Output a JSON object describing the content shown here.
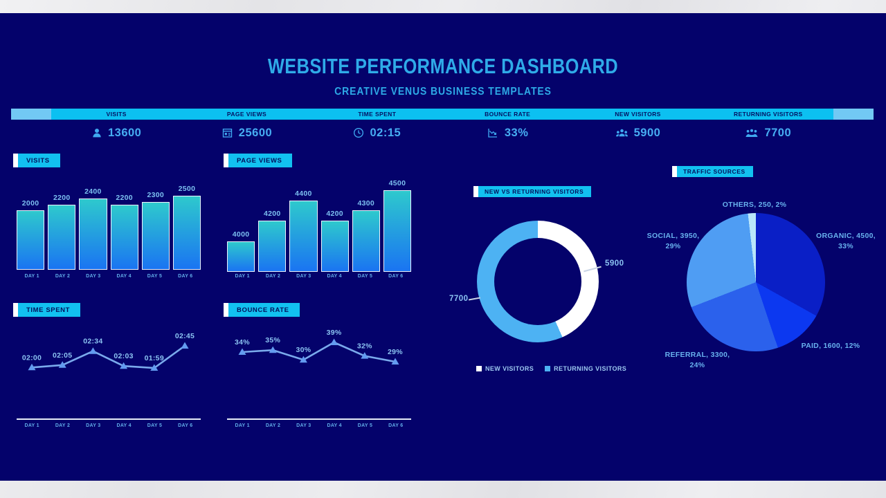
{
  "title": "WEBSITE PERFORMANCE DASHBOARD",
  "subtitle": "CREATIVE VENUS BUSINESS TEMPLATES",
  "kpis": [
    {
      "label": "VISITS",
      "value": "13600",
      "icon": "person-icon"
    },
    {
      "label": "PAGE VIEWS",
      "value": "25600",
      "icon": "page-icon"
    },
    {
      "label": "TIME SPENT",
      "value": "02:15",
      "icon": "clock-icon"
    },
    {
      "label": "BOUNCE RATE",
      "value": "33%",
      "icon": "trend-down-icon"
    },
    {
      "label": "NEW VISITORS",
      "value": "5900",
      "icon": "group-icon"
    },
    {
      "label": "RETURNING VISITORS",
      "value": "7700",
      "icon": "crowd-icon"
    }
  ],
  "colors": {
    "dashboard_bg": "#04026b",
    "accent_cyan": "#12c1f0",
    "strip_square": "#72c9f4",
    "title_cyan": "#2fabe8",
    "kpi_value_blue": "#46adf2",
    "bar_gradient_top": "#2ec9cd",
    "bar_gradient_bottom": "#1a74f2",
    "line_blue": "#7aaaec",
    "marker_blue": "#639bf0"
  },
  "chart_data": [
    {
      "type": "bar",
      "title": "VISITS",
      "categories": [
        "DAY 1",
        "DAY 2",
        "DAY 3",
        "DAY 4",
        "DAY 5",
        "DAY 6"
      ],
      "values": [
        2000,
        2200,
        2400,
        2200,
        2300,
        2500
      ],
      "ylim": [
        0,
        2500
      ],
      "grid": false,
      "data_labels": true
    },
    {
      "type": "bar",
      "title": "PAGE VIEWS",
      "categories": [
        "DAY 1",
        "DAY 2",
        "DAY 3",
        "DAY 4",
        "DAY 5",
        "DAY 6"
      ],
      "values": [
        4000,
        4200,
        4400,
        4200,
        4300,
        4500
      ],
      "ylim": [
        3700,
        4500
      ],
      "grid": false,
      "data_labels": true
    },
    {
      "type": "line",
      "title": "TIME SPENT",
      "categories": [
        "DAY 1",
        "DAY 2",
        "DAY 3",
        "DAY 4",
        "DAY 5",
        "DAY 6"
      ],
      "labels": [
        "02:00",
        "02:05",
        "02:34",
        "02:03",
        "01:59",
        "02:45"
      ],
      "values": [
        120,
        125,
        154,
        123,
        119,
        165
      ],
      "unit": "mm:ss",
      "marker": "triangle",
      "grid": false
    },
    {
      "type": "line",
      "title": "BOUNCE RATE",
      "categories": [
        "DAY 1",
        "DAY 2",
        "DAY 3",
        "DAY 4",
        "DAY 5",
        "DAY 6"
      ],
      "labels": [
        "34%",
        "35%",
        "30%",
        "39%",
        "32%",
        "29%"
      ],
      "values": [
        34,
        35,
        30,
        39,
        32,
        29
      ],
      "unit": "%",
      "marker": "triangle",
      "grid": false
    },
    {
      "type": "donut",
      "title": "NEW VS RETURNING VISITORS",
      "series": [
        {
          "name": "NEW VISITORS",
          "value": 5900,
          "color": "#ffffff"
        },
        {
          "name": "RETURNING VISITORS",
          "value": 7700,
          "color": "#4db2f3"
        }
      ],
      "legend_position": "bottom"
    },
    {
      "type": "pie",
      "title": "TRAFFIC SOURCES",
      "slices": [
        {
          "name": "ORGANIC",
          "value": 4500,
          "pct": "33%",
          "color": "#0a1fc6",
          "label_lines": [
            "ORGANIC, 4500,",
            "33%"
          ]
        },
        {
          "name": "PAID",
          "value": 1600,
          "pct": "12%",
          "color": "#0c38f0",
          "label_lines": [
            "PAID, 1600, 12%"
          ]
        },
        {
          "name": "REFERRAL",
          "value": 3300,
          "pct": "24%",
          "color": "#2b61ec",
          "label_lines": [
            "REFERRAL, 3300,",
            "24%"
          ]
        },
        {
          "name": "SOCIAL",
          "value": 3950,
          "pct": "29%",
          "color": "#4f9df3",
          "label_lines": [
            "SOCIAL, 3950,",
            "29%"
          ]
        },
        {
          "name": "OTHERS",
          "value": 250,
          "pct": "2%",
          "color": "#b9e6fa",
          "label_lines": [
            "OTHERS, 250, 2%"
          ]
        }
      ]
    }
  ]
}
